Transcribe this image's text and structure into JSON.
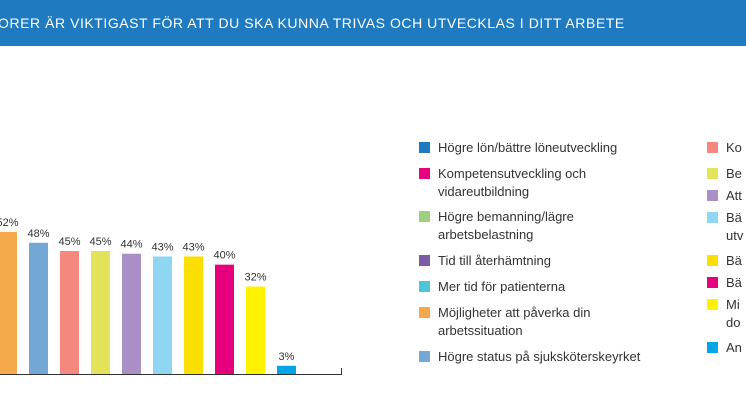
{
  "header": {
    "title": "ORER ÄR VIKTIGAST FÖR ATT DU SKA KUNNA TRIVAS OCH UTVECKLAS I DITT ARBETE"
  },
  "colors": {
    "banner": "#1f7ac0",
    "axis": "#333333",
    "text": "#333333"
  },
  "chart_data": {
    "type": "bar",
    "ylim": [
      0,
      60
    ],
    "values": [
      52,
      48,
      45,
      45,
      44,
      43,
      43,
      40,
      32,
      3
    ],
    "data_labels": [
      "52%",
      "48%",
      "45%",
      "45%",
      "44%",
      "43%",
      "43%",
      "40%",
      "32%",
      "3%"
    ],
    "bar_colors": [
      "#f5a94b",
      "#72a7d6",
      "#f4877e",
      "#e3e35a",
      "#a98fc6",
      "#8fd6f3",
      "#fadf00",
      "#e6007e",
      "#fff200",
      "#00a6e6"
    ],
    "legend": [
      {
        "label": "Högre lön/bättre löneutveckling",
        "color": "#1f7ac0"
      },
      {
        "label": "Kompetensutveckling och\nvidareutbildning",
        "color": "#e6007e"
      },
      {
        "label": "Högre bemanning/lägre\narbetsbelastning",
        "color": "#9ecf7e"
      },
      {
        "label": "Tid till återhämtning",
        "color": "#7b5aa6"
      },
      {
        "label": "Mer tid för patienterna",
        "color": "#4cc5d8"
      },
      {
        "label": "Möjligheter att påverka din\narbetssituation",
        "color": "#f5a94b"
      },
      {
        "label": "Högre status på sjuksköterskeyrket",
        "color": "#72a7d6"
      },
      {
        "label": "Ko",
        "color": "#f4877e"
      },
      {
        "label": "Be",
        "color": "#e3e35a"
      },
      {
        "label": "Att",
        "color": "#a98fc6"
      },
      {
        "label": "Bä\nutv",
        "color": "#8fd6f3"
      },
      {
        "label": "Bä",
        "color": "#fadf00"
      },
      {
        "label": "Bä",
        "color": "#e6007e"
      },
      {
        "label": "Mi\ndo",
        "color": "#fff200"
      },
      {
        "label": "An",
        "color": "#00a6e6"
      }
    ]
  }
}
